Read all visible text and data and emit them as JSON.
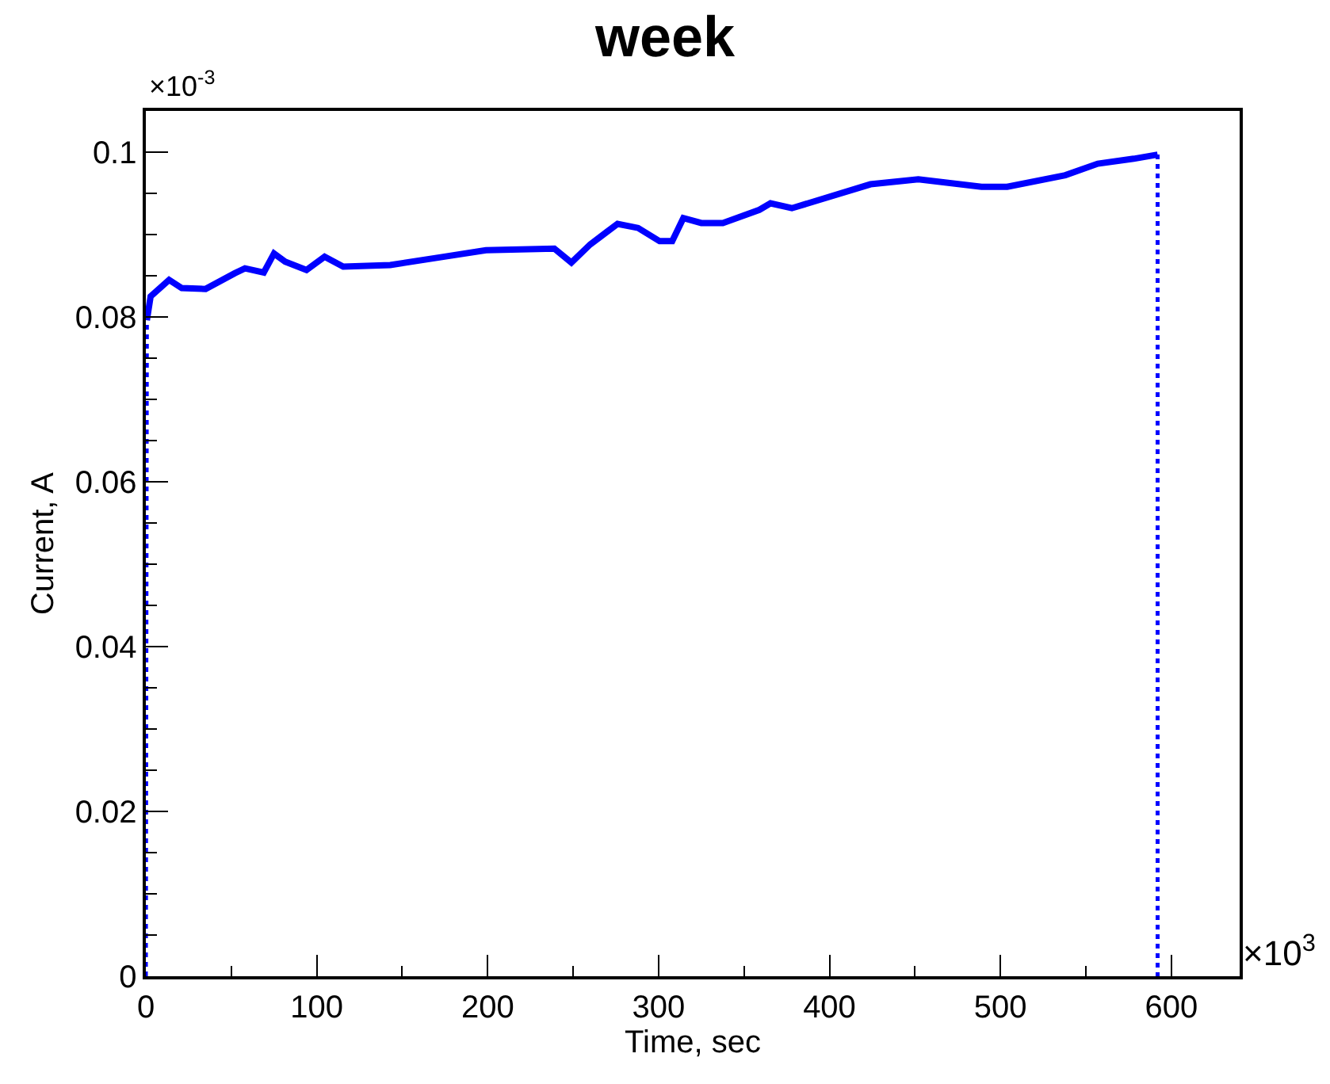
{
  "chart_data": {
    "type": "line",
    "title": "week",
    "xlabel": "Time, sec",
    "ylabel": "Current, A",
    "annotations": [
      "×10$^{-3}$",
      "×10$^{3}$"
    ],
    "xlim": [
      0,
      640
    ],
    "xticks": [
      0,
      100,
      200,
      300,
      400,
      500,
      600
    ],
    "ylim": [
      0,
      0.105
    ],
    "yticks": [
      0,
      0.02,
      0.04,
      0.06,
      0.08,
      0.1
    ],
    "marker": "none",
    "series": [
      {
        "color": "#0000ff",
        "line_style": "solid",
        "x": [
          0.6,
          2.8,
          13.6,
          21,
          35,
          52,
          58,
          69,
          75,
          81.5,
          94,
          104.6,
          115.5,
          143,
          174,
          199,
          239,
          249,
          260,
          276,
          288,
          300.6,
          308,
          314.5,
          325,
          337.6,
          359,
          365.5,
          378,
          424,
          452,
          489,
          504,
          538,
          557,
          578,
          592
        ],
        "values": [
          0.0796,
          0.0825,
          0.0845,
          0.0835,
          0.0834,
          0.0853,
          0.0859,
          0.0854,
          0.0877,
          0.0867,
          0.0857,
          0.0873,
          0.0861,
          0.0863,
          0.0873,
          0.0881,
          0.0883,
          0.0866,
          0.0888,
          0.0913,
          0.0908,
          0.0892,
          0.0892,
          0.092,
          0.0914,
          0.0914,
          0.093,
          0.0938,
          0.0932,
          0.0961,
          0.0967,
          0.0958,
          0.0958,
          0.0972,
          0.0986,
          0.0992,
          0.0997
        ]
      },
      {
        "color": "#0000ff",
        "line_style": "dotted",
        "x": [
          0,
          0.6
        ],
        "values": [
          0,
          0.0796
        ]
      },
      {
        "color": "#0000ff",
        "line_style": "dotted",
        "x": [
          592,
          592
        ],
        "values": [
          0.0997,
          0
        ]
      }
    ]
  }
}
